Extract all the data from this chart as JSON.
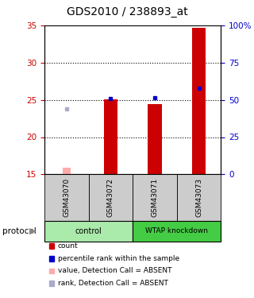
{
  "title": "GDS2010 / 238893_at",
  "samples": [
    "GSM43070",
    "GSM43072",
    "GSM43071",
    "GSM43073"
  ],
  "ylim_left": [
    15,
    35
  ],
  "yticks_left": [
    15,
    20,
    25,
    30,
    35
  ],
  "yticks_right_vals": [
    0,
    25,
    50,
    75,
    100
  ],
  "ytick_labels_right": [
    "0",
    "25",
    "50",
    "75",
    "100%"
  ],
  "red_bars": [
    null,
    25.1,
    24.4,
    34.7
  ],
  "blue_squares": [
    null,
    25.2,
    25.3,
    26.6
  ],
  "pink_bar": [
    15.9,
    null,
    null,
    null
  ],
  "lavender_square": [
    23.8,
    null,
    null,
    null
  ],
  "bar_bottom": 15.0,
  "red_bar_color": "#cc0000",
  "blue_sq_color": "#0000cc",
  "pink_bar_color": "#ffaaaa",
  "lavender_sq_color": "#aaaacc",
  "ctrl_color": "#aaeaaa",
  "wtap_color": "#44cc44",
  "sample_bg": "#cccccc",
  "dotted_yticks": [
    20,
    25,
    30
  ],
  "legend_items": [
    {
      "label": "count",
      "color": "#cc0000"
    },
    {
      "label": "percentile rank within the sample",
      "color": "#0000cc"
    },
    {
      "label": "value, Detection Call = ABSENT",
      "color": "#ffaaaa"
    },
    {
      "label": "rank, Detection Call = ABSENT",
      "color": "#aaaacc"
    }
  ]
}
